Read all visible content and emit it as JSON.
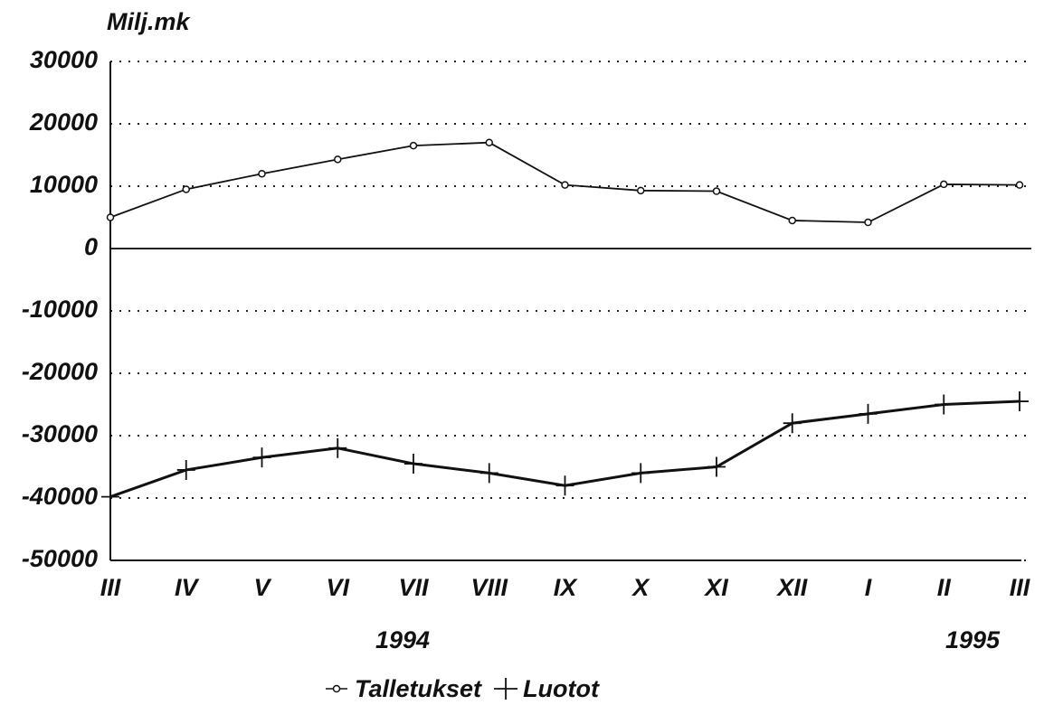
{
  "chart_data": {
    "type": "line",
    "y_label": "Milj.mk",
    "categories": [
      "III",
      "IV",
      "V",
      "VI",
      "VII",
      "VIII",
      "IX",
      "X",
      "XI",
      "XII",
      "I",
      "II",
      "III"
    ],
    "series": [
      {
        "name": "Talletukset",
        "color": "#111111",
        "marker": "circle",
        "values": [
          5000,
          9500,
          12000,
          14300,
          16500,
          17000,
          10200,
          9300,
          9200,
          4500,
          4200,
          10300,
          10200
        ]
      },
      {
        "name": "Luotot",
        "color": "#111111",
        "marker": "plus",
        "values": [
          -39800,
          -35500,
          -33500,
          -32000,
          -34500,
          -36000,
          -38000,
          -36000,
          -35000,
          -28000,
          -26500,
          -25000,
          -24500
        ]
      }
    ],
    "annotations": [
      "1994",
      "1995"
    ],
    "ylim": [
      -50000,
      30000
    ],
    "yticks": [
      -50000,
      -40000,
      -30000,
      -20000,
      -10000,
      0,
      10000,
      20000,
      30000
    ],
    "grid": true,
    "legend": "bottom"
  }
}
